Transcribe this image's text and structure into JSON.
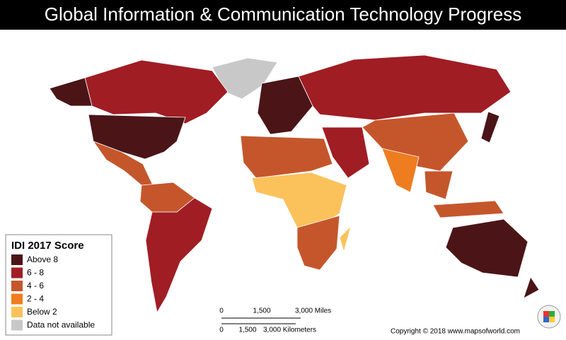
{
  "header": {
    "title": "Global Information & Communication Technology Progress"
  },
  "legend": {
    "title": "IDI 2017 Score",
    "items": [
      {
        "label": "Above 8",
        "color": "#4b1517"
      },
      {
        "label": "6 - 8",
        "color": "#a01d24"
      },
      {
        "label": "4 - 6",
        "color": "#c5562c"
      },
      {
        "label": "2 - 4",
        "color": "#ee7d1f"
      },
      {
        "label": "Below 2",
        "color": "#fbc25c"
      },
      {
        "label": "Data not available",
        "color": "#c8c8c8"
      }
    ]
  },
  "scale": {
    "miles": [
      "0",
      "1,500",
      "3,000 Miles"
    ],
    "kilometers": [
      "0",
      "1,500",
      "3,000 Kilometers"
    ]
  },
  "footer": {
    "copyright": "Copyright © 2018 www.mapsofworld.com"
  }
}
